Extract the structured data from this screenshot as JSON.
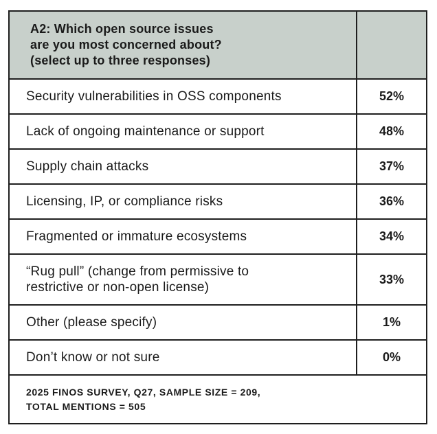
{
  "table": {
    "question": "A2: Which open source issues\nare you most concerned about?\n(select up to three responses)",
    "rows": [
      {
        "label": "Security vulnerabilities in OSS components",
        "value": "52%"
      },
      {
        "label": "Lack of ongoing maintenance or support",
        "value": "48%"
      },
      {
        "label": "Supply chain attacks",
        "value": "37%"
      },
      {
        "label": "Licensing, IP, or compliance risks",
        "value": "36%"
      },
      {
        "label": "Fragmented or immature ecosystems",
        "value": "34%"
      },
      {
        "label": "“Rug pull” (change from permissive to\nrestrictive or non-open license)",
        "value": "33%"
      },
      {
        "label": "Other (please specify)",
        "value": "1%"
      },
      {
        "label": "Don’t know or not sure",
        "value": "0%"
      }
    ],
    "footnote": "2025 FINOS SURVEY, Q27, SAMPLE SIZE = 209,\nTOTAL MENTIONS = 505"
  }
}
